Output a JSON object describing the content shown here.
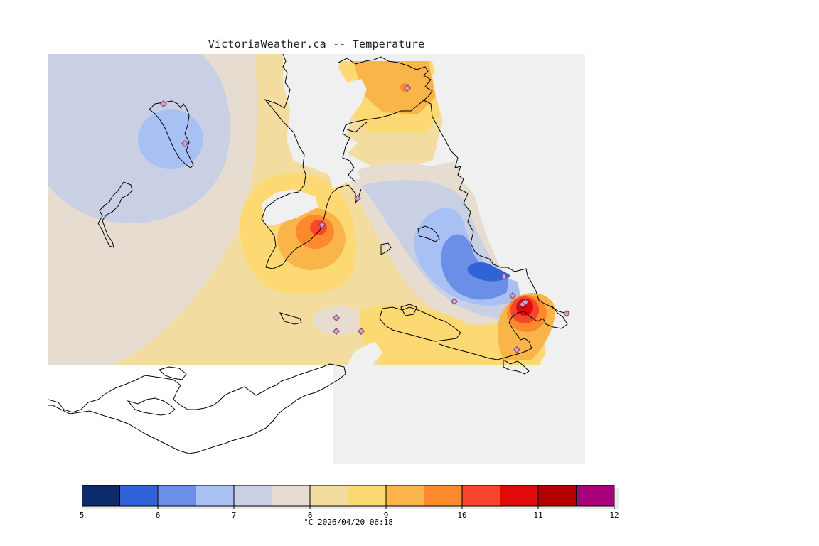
{
  "title": "VictoriaWeather.ca -- Temperature",
  "colorbar": {
    "colors": [
      "#0d2a6b",
      "#2f63d6",
      "#6b8ee6",
      "#a9c0f5",
      "#c9d0e4",
      "#e6ddd0",
      "#f3dca0",
      "#fcd972",
      "#fab54a",
      "#fc8a2d",
      "#f9452b",
      "#e10a0a",
      "#b50000",
      "#a7007a"
    ],
    "tick_labels": [
      "5",
      "6",
      "7",
      "8",
      "9",
      "10",
      "11",
      "12"
    ]
  },
  "footer": {
    "unit": "°C",
    "timestamp": "2026/04/20 06:18"
  },
  "map_colors": {
    "background_land": "#f0f0f0",
    "outside_data": "#ffffff",
    "coastline": "#000000"
  },
  "stations": [
    {
      "id": "s1"
    },
    {
      "id": "s2"
    },
    {
      "id": "s3"
    },
    {
      "id": "s4"
    },
    {
      "id": "s5"
    },
    {
      "id": "s6"
    },
    {
      "id": "s7"
    },
    {
      "id": "s8"
    },
    {
      "id": "s9"
    },
    {
      "id": "s10"
    },
    {
      "id": "s11"
    },
    {
      "id": "s12"
    },
    {
      "id": "s13"
    },
    {
      "id": "s14"
    }
  ]
}
